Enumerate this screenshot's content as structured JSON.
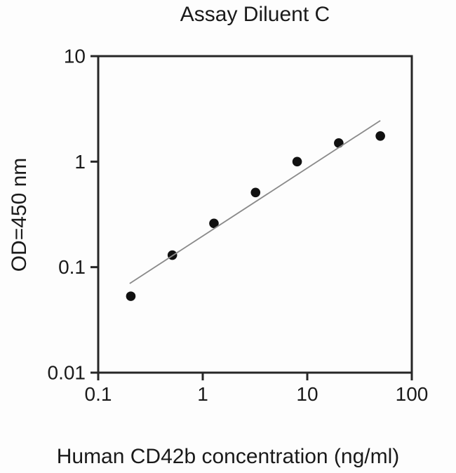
{
  "chart_data": {
    "type": "scatter",
    "title": "Assay Diluent C",
    "xlabel": "Human CD42b concentration (ng/ml)",
    "ylabel": "OD=450 nm",
    "x_scale": "log",
    "y_scale": "log",
    "xlim": [
      0.1,
      100
    ],
    "ylim": [
      0.01,
      10
    ],
    "x_ticks": [
      0.1,
      1,
      10,
      100
    ],
    "x_tick_labels": [
      "0.1",
      "1",
      "10",
      "100"
    ],
    "y_ticks": [
      10,
      1,
      0.1,
      0.01
    ],
    "y_tick_labels": [
      "10",
      "1",
      "0.1",
      "0.01"
    ],
    "grid": false,
    "legend": false,
    "series": [
      {
        "name": "standard-curve-points",
        "type": "scatter",
        "marker": "filled-circle",
        "x": [
          0.205,
          0.512,
          1.28,
          3.2,
          8,
          20,
          50
        ],
        "y": [
          0.053,
          0.13,
          0.26,
          0.51,
          1.0,
          1.5,
          1.75
        ]
      },
      {
        "name": "fit-line",
        "type": "line",
        "x": [
          0.2,
          50
        ],
        "y": [
          0.07,
          2.45
        ]
      }
    ],
    "colors": {
      "point": "#111111",
      "fit_line": "#8a8a8a",
      "frame": "#262626",
      "text": "#1a1a1a",
      "background": "#fdfdfd"
    }
  }
}
